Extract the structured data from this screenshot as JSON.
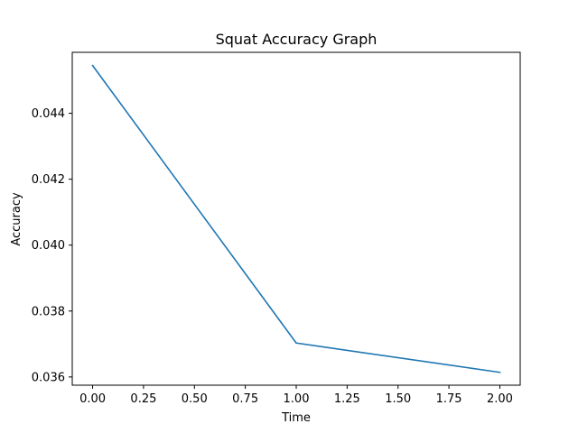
{
  "chart_data": {
    "type": "line",
    "title": "Squat Accuracy Graph",
    "xlabel": "Time",
    "ylabel": "Accuracy",
    "x": [
      0,
      1,
      2
    ],
    "series": [
      {
        "values": [
          0.04545,
          0.03703,
          0.03614
        ],
        "color": "#1f77b4"
      }
    ],
    "xlim": [
      -0.1,
      2.1
    ],
    "ylim": [
      0.03575,
      0.04585
    ],
    "xticks": [
      0.0,
      0.25,
      0.5,
      0.75,
      1.0,
      1.25,
      1.5,
      1.75,
      2.0
    ],
    "xtick_labels": [
      "0.00",
      "0.25",
      "0.50",
      "0.75",
      "1.00",
      "1.25",
      "1.50",
      "1.75",
      "2.00"
    ],
    "yticks": [
      0.036,
      0.038,
      0.04,
      0.042,
      0.044
    ],
    "ytick_labels": [
      "0.036",
      "0.038",
      "0.040",
      "0.042",
      "0.044"
    ],
    "grid": false,
    "legend": "none"
  }
}
